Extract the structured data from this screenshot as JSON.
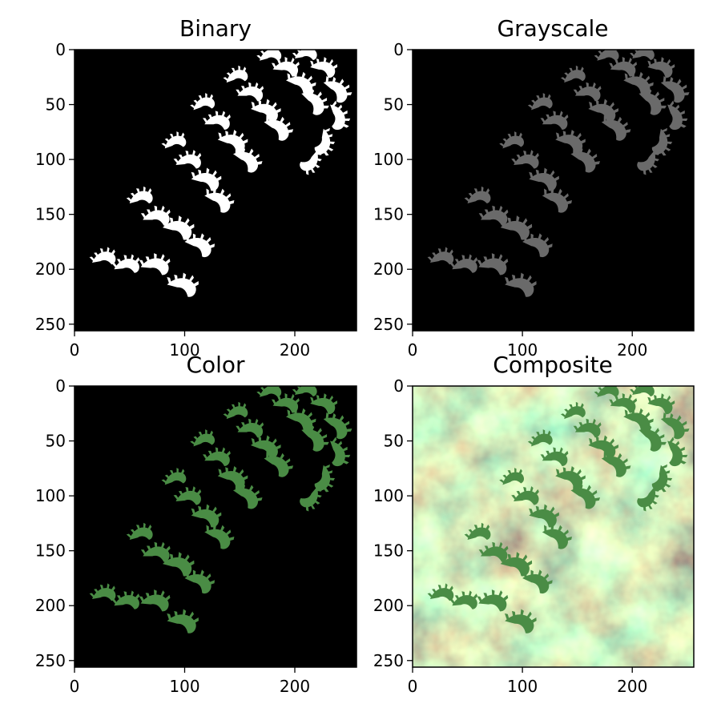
{
  "chart_data": [
    {
      "type": "image",
      "title": "Binary",
      "xlim": [
        0,
        256
      ],
      "ylim": [
        256,
        0
      ],
      "xticks": [
        "0",
        "100",
        "200"
      ],
      "yticks": [
        "0",
        "50",
        "100",
        "150",
        "200",
        "250"
      ],
      "background": "#000000",
      "foreground": "#ffffff"
    },
    {
      "type": "image",
      "title": "Grayscale",
      "xlim": [
        0,
        256
      ],
      "ylim": [
        256,
        0
      ],
      "xticks": [
        "0",
        "100",
        "200"
      ],
      "yticks": [
        "0",
        "50",
        "100",
        "150",
        "200",
        "250"
      ],
      "background": "#000000",
      "foreground": "#6a6a6a"
    },
    {
      "type": "image",
      "title": "Color",
      "xlim": [
        0,
        256
      ],
      "ylim": [
        256,
        0
      ],
      "xticks": [
        "0",
        "100",
        "200"
      ],
      "yticks": [
        "0",
        "50",
        "100",
        "150",
        "200",
        "250"
      ],
      "background": "#000000",
      "foreground": "#4a8c45"
    },
    {
      "type": "image",
      "title": "Composite",
      "xlim": [
        0,
        256
      ],
      "ylim": [
        256,
        0
      ],
      "xticks": [
        "0",
        "100",
        "200"
      ],
      "yticks": [
        "0",
        "50",
        "100",
        "150",
        "200",
        "250"
      ],
      "background": "#c8c850",
      "foreground": "#4a8c45"
    }
  ]
}
